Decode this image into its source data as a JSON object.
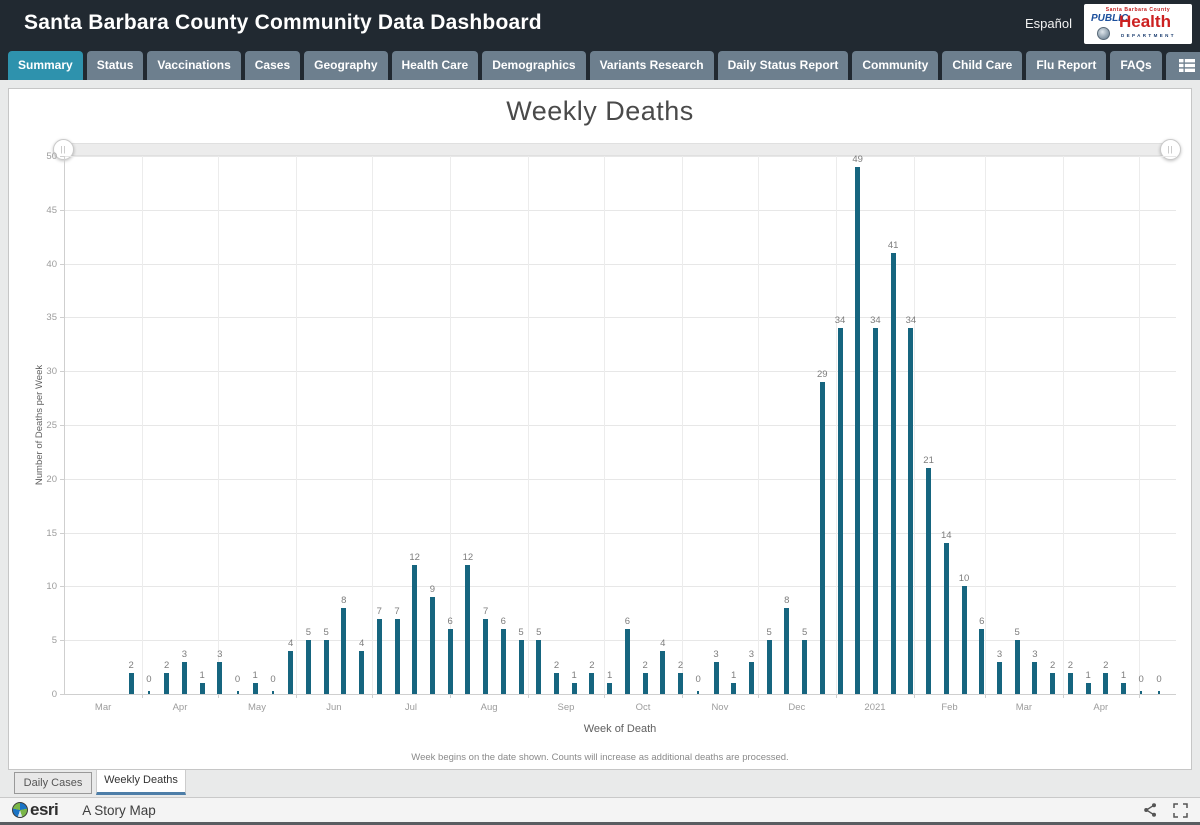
{
  "header": {
    "title": "Santa Barbara County Community Data Dashboard",
    "language_link": "Español",
    "logo": {
      "line1": "Santa Barbara County",
      "word1": "PUBLIC",
      "word2": "Health",
      "word3": "DEPARTMENT"
    }
  },
  "nav_tabs": [
    {
      "label": "Summary",
      "active": true
    },
    {
      "label": "Status",
      "active": false
    },
    {
      "label": "Vaccinations",
      "active": false
    },
    {
      "label": "Cases",
      "active": false
    },
    {
      "label": "Geography",
      "active": false
    },
    {
      "label": "Health Care",
      "active": false
    },
    {
      "label": "Demographics",
      "active": false
    },
    {
      "label": "Variants Research",
      "active": false
    },
    {
      "label": "Daily Status Report",
      "active": false
    },
    {
      "label": "Community",
      "active": false
    },
    {
      "label": "Child Care",
      "active": false
    },
    {
      "label": "Flu Report",
      "active": false
    },
    {
      "label": "FAQs",
      "active": false
    },
    {
      "label": null,
      "active": false,
      "icon": "grid-list-icon"
    }
  ],
  "chart_data": {
    "type": "bar",
    "title": "Weekly Deaths",
    "xlabel": "Week of Death",
    "ylabel": "Number of Deaths per Week",
    "footnote": "Week begins on the date shown. Counts will increase as additional deaths are processed.",
    "ylim": [
      0,
      50
    ],
    "ytick_step": 5,
    "grid": true,
    "month_labels": [
      "Mar",
      "Apr",
      "May",
      "Jun",
      "Jul",
      "Aug",
      "Sep",
      "Oct",
      "Nov",
      "Dec",
      "2021",
      "Feb",
      "Mar",
      "Apr"
    ],
    "month_days": [
      31,
      30,
      31,
      30,
      31,
      31,
      30,
      31,
      30,
      31,
      31,
      28,
      31,
      30
    ],
    "values": [
      2,
      0,
      2,
      3,
      1,
      3,
      0,
      1,
      0,
      4,
      5,
      5,
      8,
      4,
      7,
      7,
      12,
      9,
      6,
      12,
      7,
      6,
      5,
      5,
      2,
      1,
      2,
      1,
      6,
      2,
      4,
      2,
      0,
      3,
      1,
      3,
      5,
      8,
      5,
      29,
      34,
      49,
      34,
      41,
      34,
      21,
      14,
      10,
      6,
      3,
      5,
      3,
      2,
      2,
      1,
      2,
      1,
      0,
      0
    ],
    "bar_color": "#16657f"
  },
  "slider": {
    "left_handle": "||",
    "right_handle": "||"
  },
  "bottom_tabs": [
    {
      "label": "Daily Cases",
      "active": false
    },
    {
      "label": "Weekly Deaths",
      "active": true
    }
  ],
  "footer": {
    "brand": "esri",
    "tagline": "A Story Map"
  },
  "colors": {
    "header_bg": "#212931",
    "tab_active": "#2e92ad",
    "tab_inactive": "#6d7f8e",
    "bar": "#16657f",
    "active_view_underline": "#4d7ea8"
  }
}
